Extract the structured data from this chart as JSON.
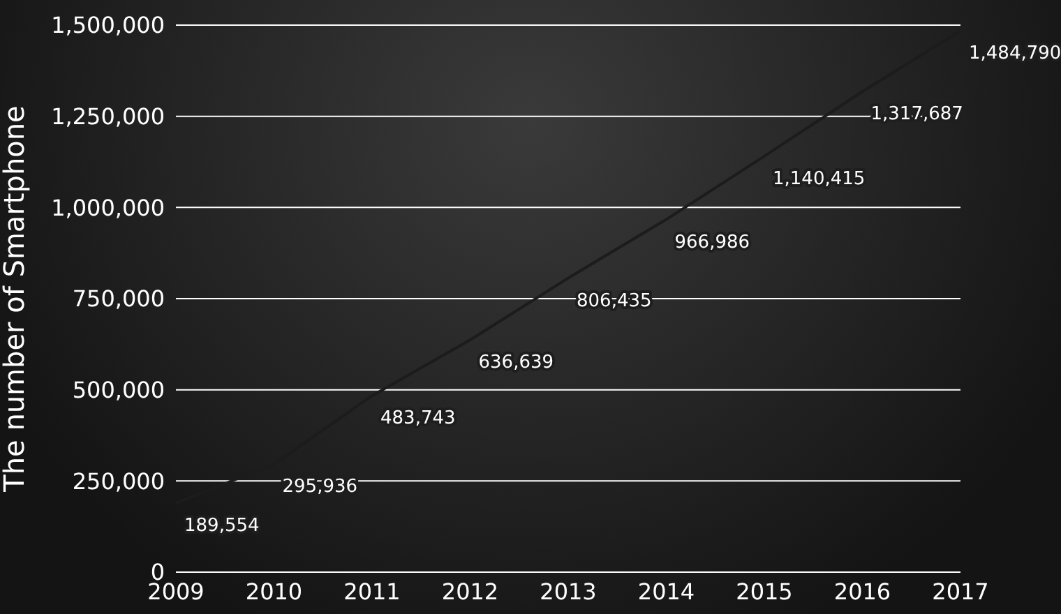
{
  "chart_data": {
    "type": "line",
    "ylabel": "The number of Smartphone",
    "x": [
      2009,
      2010,
      2011,
      2012,
      2013,
      2014,
      2015,
      2016,
      2017
    ],
    "values": [
      189554,
      295936,
      483743,
      636639,
      806435,
      966986,
      1140415,
      1317687,
      1484790
    ],
    "value_labels": [
      "189,554",
      "295,936",
      "483,743",
      "636,639",
      "806,435",
      "966,986",
      "1,140,415",
      "1,317,687",
      "1,484,790"
    ],
    "color": "#1c1c1c",
    "marker": "none",
    "line_style": "solid",
    "grid": "y",
    "legend": false,
    "xlim": [
      2009,
      2017
    ],
    "xticks": [
      2009,
      2010,
      2011,
      2012,
      2013,
      2014,
      2015,
      2016,
      2017
    ],
    "ylim": [
      0,
      1500000
    ],
    "yticks": [
      0,
      {
        "value": 250000,
        "label": "250,000"
      },
      {
        "value": 500000,
        "label": "500,000"
      },
      {
        "value": 750000,
        "label": "750,000"
      },
      {
        "value": 1000000,
        "label": "1,000,000"
      },
      {
        "value": 1250000,
        "label": "1,250,000"
      },
      {
        "value": 1500000,
        "label": "1,500,000"
      }
    ]
  }
}
